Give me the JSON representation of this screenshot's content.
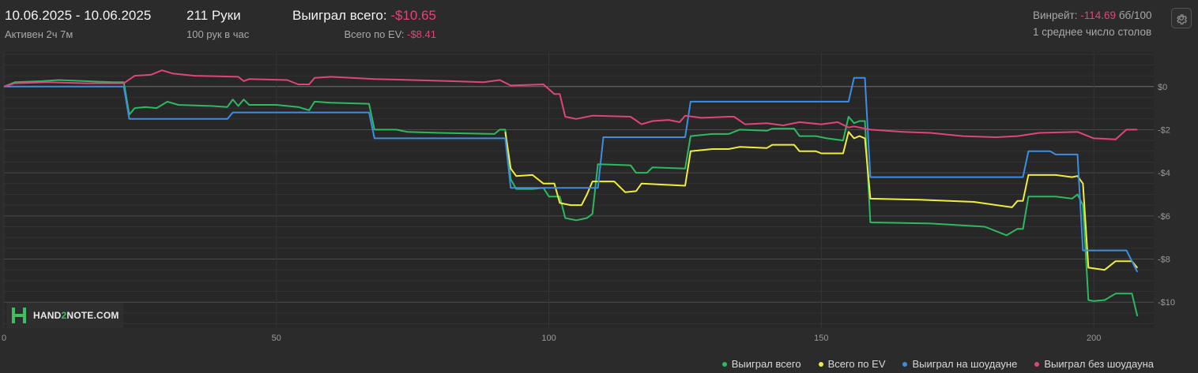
{
  "header": {
    "date_range": "10.06.2025 - 10.06.2025",
    "active": "Активен 2ч 7м",
    "hands": "211 Руки",
    "hands_rate": "100 рук в час",
    "won_label": "Выиграл всего:",
    "won_value": "-$10.65",
    "ev_label": "Всего по EV:",
    "ev_value": "-$8.41",
    "winrate_label": "Винрейт:",
    "winrate_value": "-114.69",
    "winrate_unit": "бб/100",
    "tables": "1 среднее число столов",
    "settings_icon": "gear-icon"
  },
  "logo": {
    "text_left": "HAND",
    "text_mid": "2",
    "text_right": "NOTE.COM"
  },
  "colors": {
    "background": "#2b2b2b",
    "won": "#2dba5f",
    "ev": "#f2ec3c",
    "showdown": "#3d8ee3",
    "non_showdown": "#e0457a",
    "negative": "#e0457a"
  },
  "chart_data": {
    "type": "line",
    "x_ticks": [
      "0",
      "50",
      "100",
      "150",
      "200"
    ],
    "y_ticks": [
      "$0",
      "-$2",
      "-$4",
      "-$6",
      "-$8",
      "-$10"
    ],
    "xlim": [
      0,
      211
    ],
    "ylim": [
      -11.2,
      1.6
    ],
    "grid": true,
    "legend_position": "bottom-right",
    "series": [
      {
        "name": "Выиграл всего",
        "color": "#2dba5f",
        "points": [
          [
            0,
            0
          ],
          [
            2,
            0.2
          ],
          [
            7,
            0.25
          ],
          [
            10,
            0.3
          ],
          [
            15,
            0.25
          ],
          [
            20,
            0.2
          ],
          [
            22,
            0.2
          ],
          [
            23,
            -1.3
          ],
          [
            24,
            -1.0
          ],
          [
            26,
            -0.95
          ],
          [
            28,
            -1.0
          ],
          [
            30,
            -0.7
          ],
          [
            32,
            -0.85
          ],
          [
            38,
            -0.9
          ],
          [
            41,
            -0.95
          ],
          [
            42,
            -0.6
          ],
          [
            43,
            -0.9
          ],
          [
            44,
            -0.6
          ],
          [
            45,
            -0.85
          ],
          [
            50,
            -0.85
          ],
          [
            54,
            -0.95
          ],
          [
            56,
            -1.1
          ],
          [
            57,
            -0.7
          ],
          [
            60,
            -0.75
          ],
          [
            67,
            -0.8
          ],
          [
            68,
            -2.0
          ],
          [
            72,
            -2.0
          ],
          [
            74,
            -2.1
          ],
          [
            80,
            -2.15
          ],
          [
            90,
            -2.2
          ],
          [
            91,
            -2.0
          ],
          [
            92,
            -2.0
          ],
          [
            93,
            -4.3
          ],
          [
            94,
            -4.75
          ],
          [
            97,
            -4.75
          ],
          [
            99,
            -4.7
          ],
          [
            100,
            -5.1
          ],
          [
            102,
            -5.1
          ],
          [
            103,
            -6.1
          ],
          [
            105,
            -6.2
          ],
          [
            107,
            -6.1
          ],
          [
            108,
            -5.9
          ],
          [
            109,
            -3.6
          ],
          [
            115,
            -3.65
          ],
          [
            116,
            -4.0
          ],
          [
            118,
            -4.0
          ],
          [
            119,
            -3.75
          ],
          [
            125,
            -3.8
          ],
          [
            126,
            -2.3
          ],
          [
            130,
            -2.2
          ],
          [
            133,
            -2.2
          ],
          [
            135,
            -2.0
          ],
          [
            140,
            -2.05
          ],
          [
            141,
            -1.95
          ],
          [
            145,
            -1.95
          ],
          [
            146,
            -2.3
          ],
          [
            149,
            -2.3
          ],
          [
            151,
            -2.4
          ],
          [
            154,
            -2.5
          ],
          [
            155,
            -1.4
          ],
          [
            156,
            -1.7
          ],
          [
            157,
            -1.6
          ],
          [
            158,
            -1.6
          ],
          [
            159,
            -6.3
          ],
          [
            170,
            -6.35
          ],
          [
            180,
            -6.5
          ],
          [
            184,
            -6.9
          ],
          [
            186,
            -6.6
          ],
          [
            187,
            -6.6
          ],
          [
            188,
            -5.1
          ],
          [
            193,
            -5.1
          ],
          [
            196,
            -5.2
          ],
          [
            197,
            -5.0
          ],
          [
            198,
            -5.5
          ],
          [
            199,
            -9.9
          ],
          [
            200,
            -9.95
          ],
          [
            202,
            -9.9
          ],
          [
            204,
            -9.6
          ],
          [
            207,
            -9.6
          ],
          [
            208,
            -10.65
          ]
        ]
      },
      {
        "name": "Всего по EV",
        "color": "#f2ec3c",
        "points": [
          [
            92,
            -2.1
          ],
          [
            93,
            -3.8
          ],
          [
            94,
            -4.15
          ],
          [
            97,
            -4.1
          ],
          [
            99,
            -4.5
          ],
          [
            101,
            -4.5
          ],
          [
            102,
            -5.4
          ],
          [
            104,
            -5.5
          ],
          [
            106,
            -5.5
          ],
          [
            107,
            -5.0
          ],
          [
            108,
            -4.4
          ],
          [
            112,
            -4.4
          ],
          [
            114,
            -4.9
          ],
          [
            116,
            -4.85
          ],
          [
            117,
            -4.5
          ],
          [
            125,
            -4.6
          ],
          [
            126,
            -3.0
          ],
          [
            130,
            -2.9
          ],
          [
            133,
            -2.9
          ],
          [
            135,
            -2.8
          ],
          [
            140,
            -2.85
          ],
          [
            141,
            -2.7
          ],
          [
            145,
            -2.7
          ],
          [
            146,
            -3.0
          ],
          [
            149,
            -3.0
          ],
          [
            150,
            -3.1
          ],
          [
            154,
            -3.1
          ],
          [
            155,
            -2.1
          ],
          [
            156,
            -2.4
          ],
          [
            157,
            -2.3
          ],
          [
            158,
            -2.4
          ],
          [
            159,
            -5.2
          ],
          [
            168,
            -5.25
          ],
          [
            178,
            -5.35
          ],
          [
            185,
            -5.6
          ],
          [
            186,
            -5.3
          ],
          [
            187,
            -5.3
          ],
          [
            188,
            -4.1
          ],
          [
            193,
            -4.1
          ],
          [
            196,
            -4.2
          ],
          [
            197,
            -4.15
          ],
          [
            198,
            -4.5
          ],
          [
            199,
            -8.4
          ],
          [
            202,
            -8.5
          ],
          [
            204,
            -8.1
          ],
          [
            207,
            -8.1
          ],
          [
            208,
            -8.41
          ]
        ]
      },
      {
        "name": "Выиграл на шоудауне",
        "color": "#3d8ee3",
        "points": [
          [
            0,
            0
          ],
          [
            22,
            0
          ],
          [
            23,
            -1.5
          ],
          [
            41,
            -1.5
          ],
          [
            42,
            -1.2
          ],
          [
            67,
            -1.2
          ],
          [
            68,
            -2.4
          ],
          [
            92,
            -2.4
          ],
          [
            93,
            -4.7
          ],
          [
            109,
            -4.7
          ],
          [
            110,
            -2.35
          ],
          [
            125,
            -2.35
          ],
          [
            126,
            -0.7
          ],
          [
            155,
            -0.7
          ],
          [
            156,
            0.4
          ],
          [
            158,
            0.4
          ],
          [
            159,
            -4.2
          ],
          [
            187,
            -4.2
          ],
          [
            188,
            -3.0
          ],
          [
            192,
            -3.0
          ],
          [
            193,
            -3.15
          ],
          [
            197,
            -3.15
          ],
          [
            198,
            -7.6
          ],
          [
            206,
            -7.6
          ],
          [
            208,
            -8.6
          ]
        ]
      },
      {
        "name": "Выиграл без шоудауна",
        "color": "#e0457a",
        "points": [
          [
            0,
            0
          ],
          [
            2,
            0.15
          ],
          [
            8,
            0.2
          ],
          [
            15,
            0.15
          ],
          [
            22,
            0.15
          ],
          [
            24,
            0.5
          ],
          [
            27,
            0.55
          ],
          [
            29,
            0.75
          ],
          [
            31,
            0.6
          ],
          [
            35,
            0.5
          ],
          [
            43,
            0.45
          ],
          [
            44,
            0.25
          ],
          [
            45,
            0.35
          ],
          [
            52,
            0.3
          ],
          [
            54,
            0.1
          ],
          [
            56,
            0.1
          ],
          [
            57,
            0.4
          ],
          [
            60,
            0.45
          ],
          [
            68,
            0.35
          ],
          [
            75,
            0.3
          ],
          [
            82,
            0.25
          ],
          [
            88,
            0.2
          ],
          [
            91,
            0.3
          ],
          [
            93,
            0.05
          ],
          [
            99,
            0.1
          ],
          [
            101,
            -0.35
          ],
          [
            102,
            -0.35
          ],
          [
            103,
            -1.4
          ],
          [
            105,
            -1.5
          ],
          [
            108,
            -1.35
          ],
          [
            115,
            -1.4
          ],
          [
            117,
            -1.75
          ],
          [
            119,
            -1.6
          ],
          [
            122,
            -1.55
          ],
          [
            124,
            -1.65
          ],
          [
            125,
            -1.35
          ],
          [
            128,
            -1.45
          ],
          [
            133,
            -1.4
          ],
          [
            134,
            -1.4
          ],
          [
            136,
            -1.75
          ],
          [
            140,
            -1.7
          ],
          [
            143,
            -1.8
          ],
          [
            146,
            -1.65
          ],
          [
            150,
            -1.75
          ],
          [
            153,
            -1.65
          ],
          [
            155,
            -1.9
          ],
          [
            156,
            -1.85
          ],
          [
            159,
            -2.0
          ],
          [
            165,
            -2.1
          ],
          [
            170,
            -2.15
          ],
          [
            176,
            -2.3
          ],
          [
            182,
            -2.35
          ],
          [
            186,
            -2.3
          ],
          [
            190,
            -2.15
          ],
          [
            197,
            -2.1
          ],
          [
            200,
            -2.4
          ],
          [
            204,
            -2.45
          ],
          [
            206,
            -2.0
          ],
          [
            208,
            -2.0
          ]
        ]
      }
    ]
  }
}
